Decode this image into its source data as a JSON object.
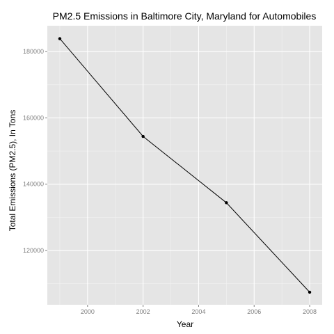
{
  "chart_data": {
    "type": "line",
    "title": "PM2.5 Emissions in Baltimore City, Maryland for Automobiles",
    "xlabel": "Year",
    "ylabel": "Total Emissions (PM2.5), In Tons",
    "x": [
      1999,
      2002,
      2005,
      2008
    ],
    "series": [
      {
        "values": [
          183900,
          154400,
          134400,
          107400
        ]
      }
    ],
    "xlim": [
      1998.55,
      2008.45
    ],
    "ylim": [
      103600,
      187800
    ],
    "x_ticks": [
      2000,
      2002,
      2004,
      2006,
      2008
    ],
    "x_tick_labels": [
      "2000",
      "2002",
      "2004",
      "2006",
      "2008"
    ],
    "y_ticks": [
      120000,
      140000,
      160000,
      180000
    ],
    "y_tick_labels": [
      "120000",
      "140000",
      "160000",
      "180000"
    ],
    "grid": true,
    "legend": "none",
    "colors": {
      "panel_background": "#e5e5e5",
      "grid_major": "#ffffff",
      "grid_minor": "#f2f2f2",
      "line": "#000000",
      "point": "#000000",
      "tick_label": "#7f7f7f"
    }
  }
}
